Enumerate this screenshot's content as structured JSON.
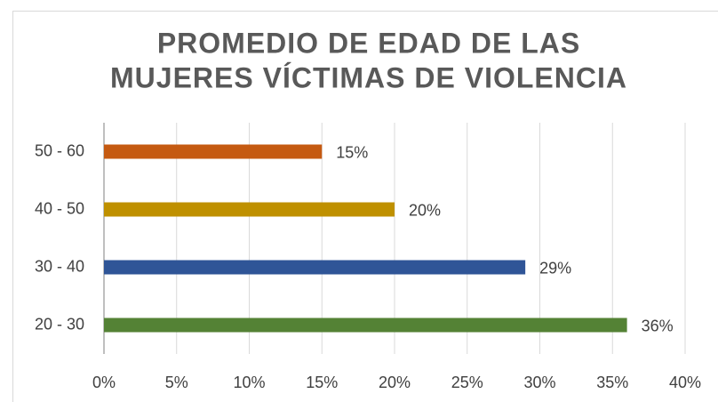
{
  "chart_data": {
    "type": "barh",
    "title": [
      "PROMEDIO DE EDAD DE LAS",
      "MUJERES VÍCTIMAS DE VIOLENCIA"
    ],
    "categories": [
      "50 - 60",
      "40 - 50",
      "30 - 40",
      "20 - 30"
    ],
    "values": [
      15,
      20,
      29,
      36
    ],
    "value_labels": [
      "15%",
      "20%",
      "29%",
      "36%"
    ],
    "colors": [
      "#c55a11",
      "#bf9000",
      "#2f5597",
      "#548235"
    ],
    "xlim": [
      0,
      40
    ],
    "xticks": [
      {
        "value": 0,
        "label": "0%"
      },
      {
        "value": 5,
        "label": "5%"
      },
      {
        "value": 10,
        "label": "10%"
      },
      {
        "value": 15,
        "label": "15%"
      },
      {
        "value": 20,
        "label": "20%"
      },
      {
        "value": 25,
        "label": "25%"
      },
      {
        "value": 30,
        "label": "30%"
      },
      {
        "value": 35,
        "label": "35%"
      },
      {
        "value": 40,
        "label": "40%"
      }
    ],
    "grid": true
  }
}
